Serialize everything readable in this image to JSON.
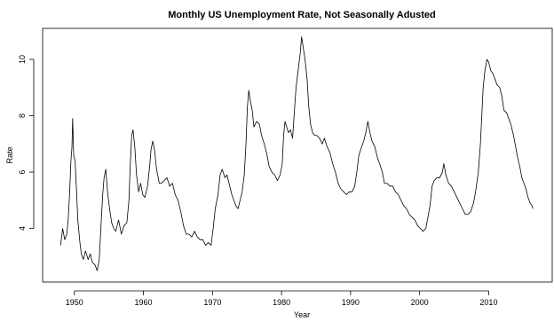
{
  "chart_data": {
    "type": "line",
    "title": "Monthly US Unemployment Rate, Not Seasonally Adusted",
    "xlabel": "Year",
    "ylabel": "Rate",
    "xlim": [
      1945.4,
      2019.2
    ],
    "ylim": [
      2.1,
      11.1
    ],
    "xticks": [
      1950,
      1960,
      1970,
      1980,
      1990,
      2000,
      2010
    ],
    "yticks": [
      4,
      6,
      8,
      10
    ],
    "grid": false,
    "legend": "none",
    "series": [
      {
        "color": "#000000",
        "points": [
          [
            1948.0,
            3.4
          ],
          [
            1948.3,
            4.0
          ],
          [
            1948.6,
            3.6
          ],
          [
            1948.9,
            3.8
          ],
          [
            1949.1,
            4.3
          ],
          [
            1949.3,
            5.2
          ],
          [
            1949.5,
            6.4
          ],
          [
            1949.65,
            6.9
          ],
          [
            1949.75,
            7.9
          ],
          [
            1949.9,
            6.6
          ],
          [
            1950.1,
            6.4
          ],
          [
            1950.3,
            5.4
          ],
          [
            1950.5,
            4.3
          ],
          [
            1950.8,
            3.5
          ],
          [
            1951.0,
            3.1
          ],
          [
            1951.3,
            2.9
          ],
          [
            1951.6,
            3.2
          ],
          [
            1952.0,
            2.9
          ],
          [
            1952.3,
            3.1
          ],
          [
            1952.6,
            2.8
          ],
          [
            1953.0,
            2.7
          ],
          [
            1953.3,
            2.5
          ],
          [
            1953.6,
            2.9
          ],
          [
            1953.9,
            4.3
          ],
          [
            1954.1,
            5.2
          ],
          [
            1954.3,
            5.8
          ],
          [
            1954.55,
            6.1
          ],
          [
            1954.8,
            5.3
          ],
          [
            1955.1,
            4.7
          ],
          [
            1955.4,
            4.2
          ],
          [
            1955.7,
            4.0
          ],
          [
            1956.0,
            3.9
          ],
          [
            1956.4,
            4.3
          ],
          [
            1956.8,
            3.8
          ],
          [
            1957.2,
            4.1
          ],
          [
            1957.6,
            4.2
          ],
          [
            1957.9,
            5.0
          ],
          [
            1958.1,
            6.3
          ],
          [
            1958.3,
            7.3
          ],
          [
            1958.5,
            7.5
          ],
          [
            1958.75,
            6.9
          ],
          [
            1959.0,
            5.9
          ],
          [
            1959.3,
            5.3
          ],
          [
            1959.6,
            5.6
          ],
          [
            1959.9,
            5.2
          ],
          [
            1960.2,
            5.1
          ],
          [
            1960.6,
            5.5
          ],
          [
            1960.9,
            6.2
          ],
          [
            1961.1,
            6.8
          ],
          [
            1961.35,
            7.1
          ],
          [
            1961.6,
            6.8
          ],
          [
            1961.9,
            6.1
          ],
          [
            1962.3,
            5.6
          ],
          [
            1962.6,
            5.6
          ],
          [
            1963.0,
            5.7
          ],
          [
            1963.4,
            5.8
          ],
          [
            1963.8,
            5.5
          ],
          [
            1964.2,
            5.6
          ],
          [
            1964.6,
            5.2
          ],
          [
            1965.0,
            5.0
          ],
          [
            1965.4,
            4.6
          ],
          [
            1965.8,
            4.1
          ],
          [
            1966.2,
            3.8
          ],
          [
            1966.6,
            3.8
          ],
          [
            1967.0,
            3.7
          ],
          [
            1967.4,
            3.9
          ],
          [
            1967.8,
            3.7
          ],
          [
            1968.2,
            3.6
          ],
          [
            1968.6,
            3.6
          ],
          [
            1969.0,
            3.4
          ],
          [
            1969.4,
            3.5
          ],
          [
            1969.8,
            3.4
          ],
          [
            1970.1,
            4.0
          ],
          [
            1970.4,
            4.7
          ],
          [
            1970.8,
            5.2
          ],
          [
            1971.1,
            5.9
          ],
          [
            1971.4,
            6.1
          ],
          [
            1971.8,
            5.8
          ],
          [
            1972.1,
            5.9
          ],
          [
            1972.4,
            5.6
          ],
          [
            1972.8,
            5.2
          ],
          [
            1973.1,
            5.0
          ],
          [
            1973.4,
            4.8
          ],
          [
            1973.7,
            4.7
          ],
          [
            1974.0,
            5.0
          ],
          [
            1974.3,
            5.3
          ],
          [
            1974.6,
            5.9
          ],
          [
            1974.85,
            7.0
          ],
          [
            1975.05,
            8.3
          ],
          [
            1975.25,
            8.9
          ],
          [
            1975.5,
            8.5
          ],
          [
            1975.75,
            8.2
          ],
          [
            1976.0,
            7.6
          ],
          [
            1976.4,
            7.8
          ],
          [
            1976.8,
            7.7
          ],
          [
            1977.1,
            7.3
          ],
          [
            1977.5,
            7.0
          ],
          [
            1977.9,
            6.6
          ],
          [
            1978.2,
            6.2
          ],
          [
            1978.6,
            6.0
          ],
          [
            1979.0,
            5.9
          ],
          [
            1979.4,
            5.7
          ],
          [
            1979.8,
            5.9
          ],
          [
            1980.1,
            6.3
          ],
          [
            1980.3,
            7.3
          ],
          [
            1980.5,
            7.8
          ],
          [
            1980.75,
            7.6
          ],
          [
            1981.0,
            7.4
          ],
          [
            1981.3,
            7.5
          ],
          [
            1981.6,
            7.2
          ],
          [
            1981.9,
            8.3
          ],
          [
            1982.1,
            9.0
          ],
          [
            1982.4,
            9.6
          ],
          [
            1982.7,
            10.2
          ],
          [
            1982.9,
            10.8
          ],
          [
            1983.15,
            10.4
          ],
          [
            1983.4,
            10.0
          ],
          [
            1983.7,
            9.3
          ],
          [
            1983.95,
            8.3
          ],
          [
            1984.2,
            7.7
          ],
          [
            1984.5,
            7.4
          ],
          [
            1984.8,
            7.3
          ],
          [
            1985.1,
            7.3
          ],
          [
            1985.5,
            7.2
          ],
          [
            1985.9,
            7.0
          ],
          [
            1986.2,
            7.2
          ],
          [
            1986.6,
            6.9
          ],
          [
            1987.0,
            6.7
          ],
          [
            1987.4,
            6.3
          ],
          [
            1987.8,
            6.0
          ],
          [
            1988.2,
            5.6
          ],
          [
            1988.6,
            5.4
          ],
          [
            1989.0,
            5.3
          ],
          [
            1989.4,
            5.2
          ],
          [
            1989.8,
            5.3
          ],
          [
            1990.2,
            5.3
          ],
          [
            1990.6,
            5.5
          ],
          [
            1990.9,
            6.0
          ],
          [
            1991.2,
            6.6
          ],
          [
            1991.6,
            6.9
          ],
          [
            1991.9,
            7.1
          ],
          [
            1992.2,
            7.4
          ],
          [
            1992.5,
            7.8
          ],
          [
            1992.8,
            7.4
          ],
          [
            1993.1,
            7.1
          ],
          [
            1993.5,
            6.9
          ],
          [
            1993.9,
            6.5
          ],
          [
            1994.2,
            6.3
          ],
          [
            1994.6,
            6.0
          ],
          [
            1994.9,
            5.6
          ],
          [
            1995.3,
            5.6
          ],
          [
            1995.7,
            5.5
          ],
          [
            1996.1,
            5.5
          ],
          [
            1996.5,
            5.3
          ],
          [
            1996.9,
            5.2
          ],
          [
            1997.3,
            5.0
          ],
          [
            1997.7,
            4.8
          ],
          [
            1998.1,
            4.7
          ],
          [
            1998.5,
            4.5
          ],
          [
            1998.9,
            4.4
          ],
          [
            1999.3,
            4.3
          ],
          [
            1999.7,
            4.1
          ],
          [
            2000.1,
            4.0
          ],
          [
            2000.5,
            3.9
          ],
          [
            2000.9,
            4.0
          ],
          [
            2001.2,
            4.4
          ],
          [
            2001.5,
            4.8
          ],
          [
            2001.8,
            5.5
          ],
          [
            2002.1,
            5.7
          ],
          [
            2002.5,
            5.8
          ],
          [
            2002.9,
            5.8
          ],
          [
            2003.3,
            6.0
          ],
          [
            2003.5,
            6.3
          ],
          [
            2003.8,
            5.9
          ],
          [
            2004.2,
            5.6
          ],
          [
            2004.6,
            5.5
          ],
          [
            2005.0,
            5.3
          ],
          [
            2005.4,
            5.1
          ],
          [
            2005.8,
            4.9
          ],
          [
            2006.2,
            4.7
          ],
          [
            2006.6,
            4.5
          ],
          [
            2007.0,
            4.5
          ],
          [
            2007.4,
            4.6
          ],
          [
            2007.8,
            4.9
          ],
          [
            2008.1,
            5.3
          ],
          [
            2008.5,
            6.0
          ],
          [
            2008.8,
            7.0
          ],
          [
            2009.0,
            8.0
          ],
          [
            2009.2,
            9.0
          ],
          [
            2009.45,
            9.6
          ],
          [
            2009.75,
            10.0
          ],
          [
            2010.0,
            9.9
          ],
          [
            2010.3,
            9.6
          ],
          [
            2010.6,
            9.5
          ],
          [
            2010.9,
            9.3
          ],
          [
            2011.2,
            9.1
          ],
          [
            2011.6,
            9.0
          ],
          [
            2011.9,
            8.7
          ],
          [
            2012.2,
            8.2
          ],
          [
            2012.6,
            8.1
          ],
          [
            2012.9,
            7.9
          ],
          [
            2013.2,
            7.7
          ],
          [
            2013.6,
            7.3
          ],
          [
            2013.9,
            6.9
          ],
          [
            2014.2,
            6.5
          ],
          [
            2014.5,
            6.2
          ],
          [
            2014.8,
            5.8
          ],
          [
            2015.1,
            5.6
          ],
          [
            2015.4,
            5.4
          ],
          [
            2015.7,
            5.1
          ],
          [
            2016.0,
            4.9
          ],
          [
            2016.3,
            4.8
          ],
          [
            2016.4,
            4.7
          ]
        ]
      }
    ]
  }
}
